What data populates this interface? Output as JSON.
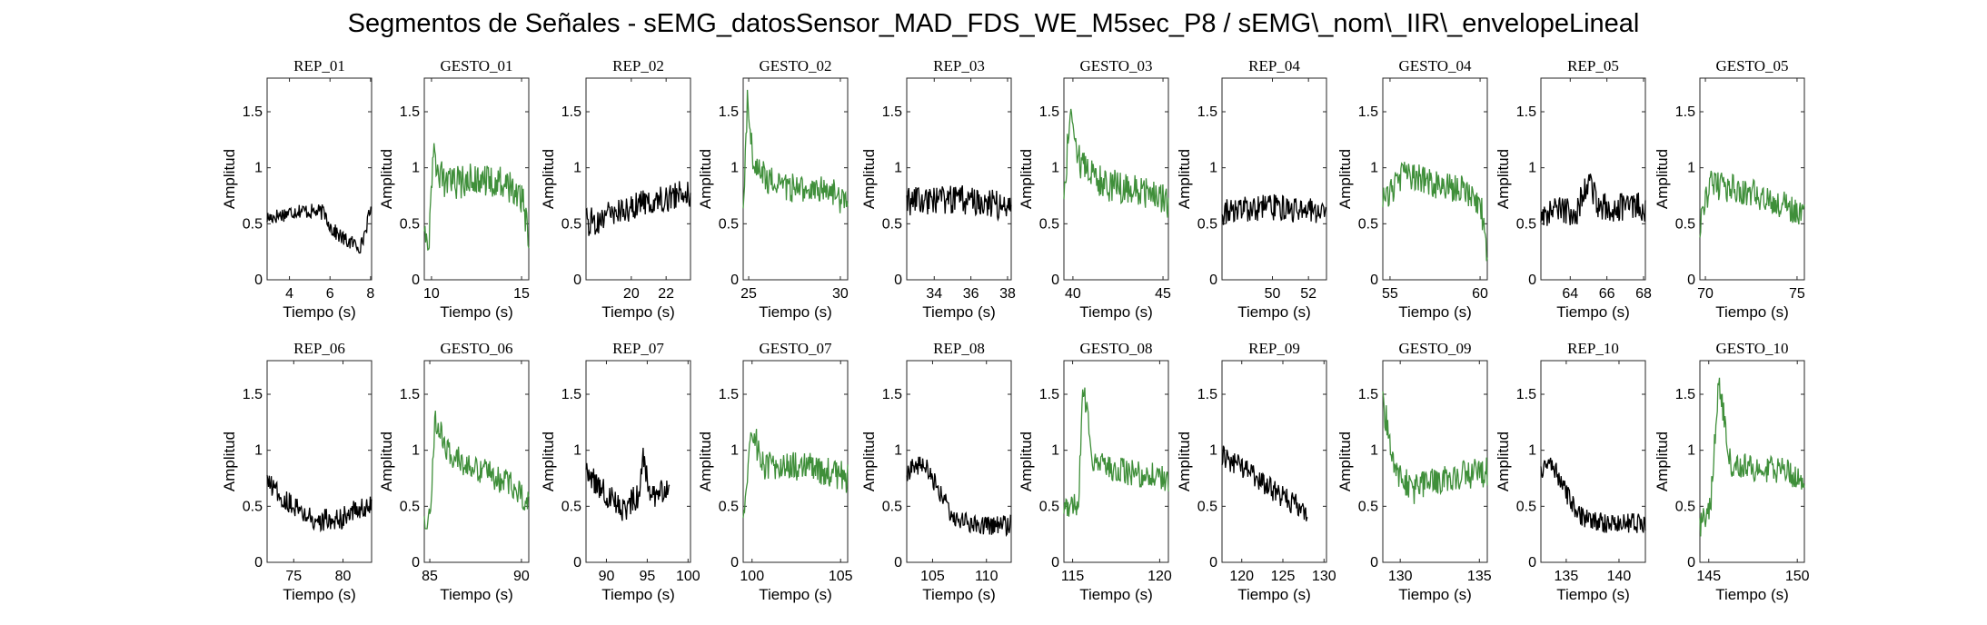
{
  "figure": {
    "title": "Segmentos de Señales - sEMG_datosSensor_MAD_FDS_WE_M5sec_P8 / sEMG\\_nom\\_IIR\\_envelopeLineal"
  },
  "colors": {
    "rep": "#000000",
    "gesto": "#3f8f3a"
  },
  "chart_data": [
    {
      "type": "line",
      "title": "REP_01",
      "xlabel": "Tiempo (s)",
      "ylabel": "Amplitud",
      "xlim": [
        2.9,
        8.05
      ],
      "ylim": [
        0,
        1.8
      ],
      "xticks": [
        4,
        6,
        8
      ],
      "yticks": [
        0,
        0.5,
        1,
        1.5
      ],
      "series": [
        {
          "color": "#000000",
          "profile": [
            [
              0,
              0.55
            ],
            [
              0.3,
              0.62
            ],
            [
              0.55,
              0.6
            ],
            [
              0.62,
              0.45
            ],
            [
              0.75,
              0.35
            ],
            [
              0.9,
              0.3
            ],
            [
              1,
              0.65
            ]
          ],
          "noise": 0.07,
          "min": 0.22,
          "max": 0.75
        }
      ]
    },
    {
      "type": "line",
      "title": "GESTO_01",
      "xlabel": "Tiempo (s)",
      "ylabel": "Amplitud",
      "xlim": [
        9.6,
        15.4
      ],
      "ylim": [
        0,
        1.8
      ],
      "xticks": [
        10,
        15
      ],
      "yticks": [
        0,
        0.5,
        1,
        1.5
      ],
      "series": [
        {
          "color": "#3f8f3a",
          "profile": [
            [
              0,
              0.55
            ],
            [
              0.04,
              0.3
            ],
            [
              0.08,
              1.1
            ],
            [
              0.2,
              0.85
            ],
            [
              0.5,
              0.9
            ],
            [
              0.8,
              0.85
            ],
            [
              0.95,
              0.7
            ],
            [
              1,
              0.3
            ]
          ],
          "noise": 0.15,
          "min": 0.25,
          "max": 1.3
        }
      ]
    },
    {
      "type": "line",
      "title": "REP_02",
      "xlabel": "Tiempo (s)",
      "ylabel": "Amplitud",
      "xlim": [
        17.4,
        23.4
      ],
      "ylim": [
        0,
        1.8
      ],
      "xticks": [
        20,
        22
      ],
      "yticks": [
        0,
        0.5,
        1,
        1.5
      ],
      "series": [
        {
          "color": "#000000",
          "profile": [
            [
              0,
              0.5
            ],
            [
              0.3,
              0.6
            ],
            [
              0.6,
              0.7
            ],
            [
              1,
              0.78
            ]
          ],
          "noise": 0.13,
          "min": 0.35,
          "max": 1.02
        }
      ]
    },
    {
      "type": "line",
      "title": "GESTO_02",
      "xlabel": "Tiempo (s)",
      "ylabel": "Amplitud",
      "xlim": [
        24.7,
        30.4
      ],
      "ylim": [
        0,
        1.8
      ],
      "xticks": [
        25,
        30
      ],
      "yticks": [
        0,
        0.5,
        1,
        1.5
      ],
      "series": [
        {
          "color": "#3f8f3a",
          "profile": [
            [
              0,
              0.55
            ],
            [
              0.04,
              1.6
            ],
            [
              0.1,
              1.0
            ],
            [
              0.3,
              0.85
            ],
            [
              0.6,
              0.8
            ],
            [
              0.85,
              0.8
            ],
            [
              1,
              0.65
            ]
          ],
          "noise": 0.13,
          "min": 0.3,
          "max": 1.7
        }
      ]
    },
    {
      "type": "line",
      "title": "REP_03",
      "xlabel": "Tiempo (s)",
      "ylabel": "Amplitud",
      "xlim": [
        32.5,
        38.2
      ],
      "ylim": [
        0,
        1.8
      ],
      "xticks": [
        34,
        36,
        38
      ],
      "yticks": [
        0,
        0.5,
        1,
        1.5
      ],
      "series": [
        {
          "color": "#000000",
          "profile": [
            [
              0,
              0.7
            ],
            [
              0.5,
              0.72
            ],
            [
              1,
              0.65
            ]
          ],
          "noise": 0.13,
          "min": 0.4,
          "max": 1.02
        }
      ]
    },
    {
      "type": "line",
      "title": "GESTO_03",
      "xlabel": "Tiempo (s)",
      "ylabel": "Amplitud",
      "xlim": [
        39.5,
        45.3
      ],
      "ylim": [
        0,
        1.8
      ],
      "xticks": [
        40,
        45
      ],
      "yticks": [
        0,
        0.5,
        1,
        1.5
      ],
      "series": [
        {
          "color": "#3f8f3a",
          "profile": [
            [
              0,
              0.7
            ],
            [
              0.06,
              1.55
            ],
            [
              0.15,
              1.05
            ],
            [
              0.4,
              0.85
            ],
            [
              0.7,
              0.8
            ],
            [
              1,
              0.7
            ]
          ],
          "noise": 0.15,
          "min": 0.4,
          "max": 1.72
        }
      ]
    },
    {
      "type": "line",
      "title": "REP_04",
      "xlabel": "Tiempo (s)",
      "ylabel": "Amplitud",
      "xlim": [
        47.2,
        53
      ],
      "ylim": [
        0,
        1.8
      ],
      "xticks": [
        50,
        52
      ],
      "yticks": [
        0,
        0.5,
        1,
        1.5
      ],
      "series": [
        {
          "color": "#000000",
          "profile": [
            [
              0,
              0.6
            ],
            [
              0.5,
              0.65
            ],
            [
              1,
              0.6
            ]
          ],
          "noise": 0.12,
          "min": 0.3,
          "max": 0.95
        }
      ]
    },
    {
      "type": "line",
      "title": "GESTO_04",
      "xlabel": "Tiempo (s)",
      "ylabel": "Amplitud",
      "xlim": [
        54.6,
        60.4
      ],
      "ylim": [
        0,
        1.8
      ],
      "xticks": [
        55,
        60
      ],
      "yticks": [
        0,
        0.5,
        1,
        1.5
      ],
      "series": [
        {
          "color": "#3f8f3a",
          "profile": [
            [
              0,
              0.7
            ],
            [
              0.2,
              0.95
            ],
            [
              0.5,
              0.85
            ],
            [
              0.8,
              0.8
            ],
            [
              0.95,
              0.6
            ],
            [
              1,
              0.15
            ]
          ],
          "noise": 0.13,
          "min": 0.12,
          "max": 1.27
        }
      ]
    },
    {
      "type": "line",
      "title": "REP_05",
      "xlabel": "Tiempo (s)",
      "ylabel": "Amplitud",
      "xlim": [
        62.4,
        68.1
      ],
      "ylim": [
        0,
        1.8
      ],
      "xticks": [
        64,
        66,
        68
      ],
      "yticks": [
        0,
        0.5,
        1,
        1.5
      ],
      "series": [
        {
          "color": "#000000",
          "profile": [
            [
              0,
              0.6
            ],
            [
              0.35,
              0.62
            ],
            [
              0.45,
              0.9
            ],
            [
              0.55,
              0.65
            ],
            [
              1,
              0.65
            ]
          ],
          "noise": 0.13,
          "min": 0.35,
          "max": 1.12
        }
      ]
    },
    {
      "type": "line",
      "title": "GESTO_05",
      "xlabel": "Tiempo (s)",
      "ylabel": "Amplitud",
      "xlim": [
        69.7,
        75.4
      ],
      "ylim": [
        0,
        1.8
      ],
      "xticks": [
        70,
        75
      ],
      "yticks": [
        0,
        0.5,
        1,
        1.5
      ],
      "series": [
        {
          "color": "#3f8f3a",
          "profile": [
            [
              0,
              0.5
            ],
            [
              0.1,
              0.85
            ],
            [
              0.4,
              0.8
            ],
            [
              0.7,
              0.7
            ],
            [
              1,
              0.6
            ]
          ],
          "noise": 0.13,
          "min": 0.2,
          "max": 1.18
        }
      ]
    },
    {
      "type": "line",
      "title": "REP_06",
      "xlabel": "Tiempo (s)",
      "ylabel": "Amplitud",
      "xlim": [
        72.3,
        82.9
      ],
      "ylim": [
        0,
        1.8
      ],
      "xticks": [
        75,
        80
      ],
      "yticks": [
        0,
        0.5,
        1,
        1.5
      ],
      "series": [
        {
          "color": "#000000",
          "profile": [
            [
              0,
              0.7
            ],
            [
              0.2,
              0.55
            ],
            [
              0.45,
              0.38
            ],
            [
              0.7,
              0.38
            ],
            [
              0.8,
              0.45
            ],
            [
              1,
              0.5
            ]
          ],
          "noise": 0.1,
          "min": 0.18,
          "max": 0.92
        }
      ]
    },
    {
      "type": "line",
      "title": "GESTO_06",
      "xlabel": "Tiempo (s)",
      "ylabel": "Amplitud",
      "xlim": [
        84.7,
        90.4
      ],
      "ylim": [
        0,
        1.8
      ],
      "xticks": [
        85,
        90
      ],
      "yticks": [
        0,
        0.5,
        1,
        1.5
      ],
      "series": [
        {
          "color": "#3f8f3a",
          "profile": [
            [
              0,
              0.35
            ],
            [
              0.06,
              0.38
            ],
            [
              0.1,
              1.3
            ],
            [
              0.25,
              0.95
            ],
            [
              0.6,
              0.8
            ],
            [
              0.9,
              0.65
            ],
            [
              1,
              0.5
            ]
          ],
          "noise": 0.12,
          "min": 0.3,
          "max": 1.5
        }
      ]
    },
    {
      "type": "line",
      "title": "REP_07",
      "xlabel": "Tiempo (s)",
      "ylabel": "Amplitud",
      "xlim": [
        87.5,
        100.3
      ],
      "ylim": [
        0,
        1.8
      ],
      "xticks": [
        90,
        95,
        100
      ],
      "yticks": [
        0,
        0.5,
        1,
        1.5
      ],
      "series": [
        {
          "color": "#000000",
          "profile": [
            [
              0,
              0.8
            ],
            [
              0.2,
              0.6
            ],
            [
              0.35,
              0.45
            ],
            [
              0.5,
              0.6
            ],
            [
              0.55,
              0.95
            ],
            [
              0.62,
              0.6
            ],
            [
              0.8,
              0.65
            ]
          ],
          "noise": 0.12,
          "min": 0.27,
          "max": 1.25
        }
      ]
    },
    {
      "type": "line",
      "title": "GESTO_07",
      "xlabel": "Tiempo (s)",
      "ylabel": "Amplitud",
      "xlim": [
        99.5,
        105.4
      ],
      "ylim": [
        0,
        1.8
      ],
      "xticks": [
        100,
        105
      ],
      "yticks": [
        0,
        0.5,
        1,
        1.5
      ],
      "series": [
        {
          "color": "#3f8f3a",
          "profile": [
            [
              0,
              0.4
            ],
            [
              0.08,
              1.2
            ],
            [
              0.2,
              0.85
            ],
            [
              0.6,
              0.85
            ],
            [
              1,
              0.75
            ]
          ],
          "noise": 0.14,
          "min": 0.28,
          "max": 1.4
        }
      ]
    },
    {
      "type": "line",
      "title": "REP_08",
      "xlabel": "Tiempo (s)",
      "ylabel": "Amplitud",
      "xlim": [
        102.6,
        112.3
      ],
      "ylim": [
        0,
        1.8
      ],
      "xticks": [
        105,
        110
      ],
      "yticks": [
        0,
        0.5,
        1,
        1.5
      ],
      "series": [
        {
          "color": "#000000",
          "profile": [
            [
              0,
              0.8
            ],
            [
              0.15,
              0.9
            ],
            [
              0.3,
              0.65
            ],
            [
              0.45,
              0.4
            ],
            [
              0.7,
              0.32
            ],
            [
              1,
              0.33
            ]
          ],
          "noise": 0.09,
          "min": 0.18,
          "max": 1.12
        }
      ]
    },
    {
      "type": "line",
      "title": "GESTO_08",
      "xlabel": "Tiempo (s)",
      "ylabel": "Amplitud",
      "xlim": [
        114.5,
        120.5
      ],
      "ylim": [
        0,
        1.8
      ],
      "xticks": [
        115,
        120
      ],
      "yticks": [
        0,
        0.5,
        1,
        1.5
      ],
      "series": [
        {
          "color": "#3f8f3a",
          "profile": [
            [
              0,
              0.5
            ],
            [
              0.14,
              0.5
            ],
            [
              0.18,
              1.6
            ],
            [
              0.28,
              0.9
            ],
            [
              0.6,
              0.8
            ],
            [
              1,
              0.75
            ]
          ],
          "noise": 0.12,
          "min": 0.3,
          "max": 1.78
        }
      ]
    },
    {
      "type": "line",
      "title": "REP_09",
      "xlabel": "Tiempo (s)",
      "ylabel": "Amplitud",
      "xlim": [
        117.6,
        130.3
      ],
      "ylim": [
        0,
        1.8
      ],
      "xticks": [
        120,
        125,
        130
      ],
      "yticks": [
        0,
        0.5,
        1,
        1.5
      ],
      "series": [
        {
          "color": "#000000",
          "profile": [
            [
              0,
              0.95
            ],
            [
              0.3,
              0.78
            ],
            [
              0.55,
              0.6
            ],
            [
              0.82,
              0.45
            ]
          ],
          "noise": 0.1,
          "min": 0.15,
          "max": 1.15
        }
      ]
    },
    {
      "type": "line",
      "title": "GESTO_09",
      "xlabel": "Tiempo (s)",
      "ylabel": "Amplitud",
      "xlim": [
        128.9,
        135.5
      ],
      "ylim": [
        0,
        1.8
      ],
      "xticks": [
        130,
        135
      ],
      "yticks": [
        0,
        0.5,
        1,
        1.5
      ],
      "series": [
        {
          "color": "#3f8f3a",
          "profile": [
            [
              0,
              1.4
            ],
            [
              0.05,
              1.2
            ],
            [
              0.12,
              0.8
            ],
            [
              0.3,
              0.65
            ],
            [
              0.6,
              0.75
            ],
            [
              1,
              0.8
            ]
          ],
          "noise": 0.14,
          "min": 0.2,
          "max": 1.6
        }
      ]
    },
    {
      "type": "line",
      "title": "REP_10",
      "xlabel": "Tiempo (s)",
      "ylabel": "Amplitud",
      "xlim": [
        132.6,
        142.5
      ],
      "ylim": [
        0,
        1.8
      ],
      "xticks": [
        135,
        140
      ],
      "yticks": [
        0,
        0.5,
        1,
        1.5
      ],
      "series": [
        {
          "color": "#000000",
          "profile": [
            [
              0,
              0.8
            ],
            [
              0.1,
              0.9
            ],
            [
              0.2,
              0.7
            ],
            [
              0.35,
              0.42
            ],
            [
              0.6,
              0.35
            ],
            [
              1,
              0.35
            ]
          ],
          "noise": 0.09,
          "min": 0.15,
          "max": 1.1
        }
      ]
    },
    {
      "type": "line",
      "title": "GESTO_10",
      "xlabel": "Tiempo (s)",
      "ylabel": "Amplitud",
      "xlim": [
        144.5,
        150.4
      ],
      "ylim": [
        0,
        1.8
      ],
      "xticks": [
        145,
        150
      ],
      "yticks": [
        0,
        0.5,
        1,
        1.5
      ],
      "series": [
        {
          "color": "#3f8f3a",
          "profile": [
            [
              0,
              0.35
            ],
            [
              0.1,
              0.5
            ],
            [
              0.18,
              1.6
            ],
            [
              0.3,
              0.85
            ],
            [
              0.6,
              0.85
            ],
            [
              1,
              0.75
            ]
          ],
          "noise": 0.13,
          "min": 0.2,
          "max": 1.78
        }
      ]
    }
  ]
}
